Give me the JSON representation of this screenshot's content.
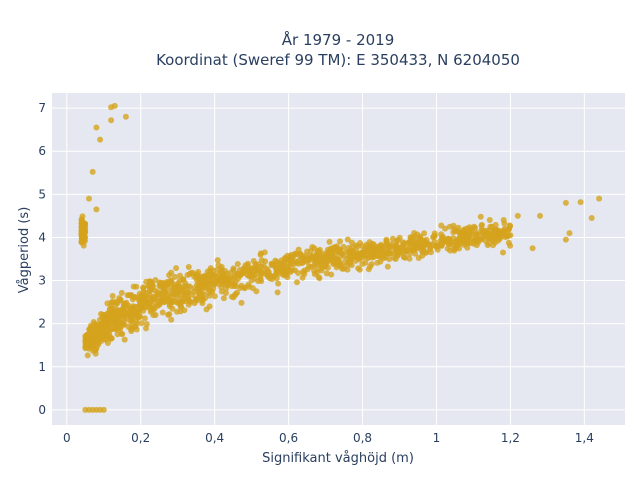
{
  "chart_data": {
    "type": "scatter",
    "title": "År 1979 - 2019",
    "subtitle": "Koordinat (Sweref 99 TM): E 350433, N 6204050",
    "xlabel": "Signifikant våghöjd (m)",
    "ylabel": "Vågperiod (s)",
    "xlim": [
      -0.04,
      1.51
    ],
    "ylim": [
      -0.35,
      7.35
    ],
    "x_ticks": [
      0,
      0.2,
      0.4,
      0.6,
      0.8,
      1,
      1.2,
      1.4
    ],
    "x_tick_labels": [
      "0",
      "0,2",
      "0,4",
      "0,6",
      "0,8",
      "1",
      "1,2",
      "1,4"
    ],
    "y_ticks": [
      0,
      1,
      2,
      3,
      4,
      5,
      6,
      7
    ],
    "y_tick_labels": [
      "0",
      "1",
      "2",
      "3",
      "4",
      "5",
      "6",
      "7"
    ],
    "grid": true,
    "legend": "none",
    "marker_color": "#d4a21d",
    "plot_background": "#e5e8f0",
    "trend": {
      "description": "dense cloud following T ≈ 4.2·Hs^0.37 with scatter ±0.4 s",
      "x_range": [
        0.04,
        1.2
      ],
      "y_lower_envelope": [
        [
          0.05,
          1.2
        ],
        [
          0.1,
          1.3
        ],
        [
          0.2,
          1.75
        ],
        [
          0.3,
          2.05
        ],
        [
          0.4,
          2.3
        ],
        [
          0.6,
          2.8
        ],
        [
          0.8,
          3.15
        ],
        [
          1.0,
          3.5
        ],
        [
          1.2,
          3.7
        ]
      ],
      "y_upper_envelope": [
        [
          0.05,
          1.9
        ],
        [
          0.1,
          2.6
        ],
        [
          0.2,
          3.2
        ],
        [
          0.3,
          3.45
        ],
        [
          0.4,
          3.6
        ],
        [
          0.6,
          3.85
        ],
        [
          0.8,
          4.1
        ],
        [
          1.0,
          4.3
        ],
        [
          1.2,
          4.6
        ]
      ]
    },
    "zero_period_points": [
      [
        0.05,
        0
      ],
      [
        0.06,
        0
      ],
      [
        0.07,
        0
      ],
      [
        0.08,
        0
      ],
      [
        0.09,
        0
      ],
      [
        0.1,
        0
      ]
    ],
    "outliers": [
      [
        0.04,
        4.33
      ],
      [
        0.06,
        4.9
      ],
      [
        0.07,
        5.52
      ],
      [
        0.08,
        4.65
      ],
      [
        0.08,
        6.55
      ],
      [
        0.09,
        6.27
      ],
      [
        0.12,
        6.72
      ],
      [
        0.12,
        7.02
      ],
      [
        0.13,
        7.05
      ],
      [
        0.16,
        6.8
      ],
      [
        1.26,
        3.75
      ],
      [
        1.28,
        4.5
      ],
      [
        1.35,
        4.8
      ],
      [
        1.35,
        3.95
      ],
      [
        1.36,
        4.1
      ],
      [
        1.39,
        4.82
      ],
      [
        1.42,
        4.45
      ],
      [
        1.44,
        4.9
      ],
      [
        1.2,
        4.05
      ],
      [
        1.22,
        4.5
      ],
      [
        1.15,
        4.25
      ],
      [
        1.12,
        4.48
      ],
      [
        1.18,
        3.65
      ],
      [
        1.09,
        4.1
      ]
    ]
  }
}
